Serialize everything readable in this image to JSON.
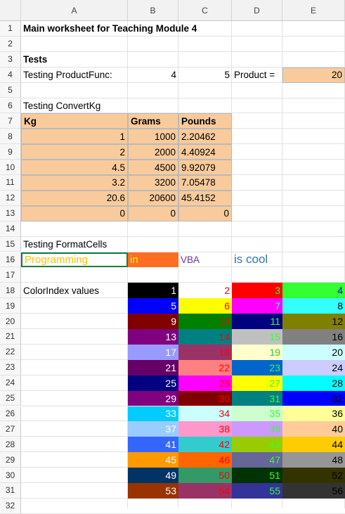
{
  "columns": [
    "A",
    "B",
    "C",
    "D",
    "E"
  ],
  "rows": [
    "1",
    "2",
    "3",
    "4",
    "5",
    "6",
    "7",
    "8",
    "9",
    "10",
    "11",
    "12",
    "13",
    "14",
    "15",
    "16",
    "17",
    "18",
    "19",
    "20",
    "21",
    "22",
    "23",
    "24",
    "25",
    "26",
    "27",
    "28",
    "29",
    "30",
    "31",
    "32"
  ],
  "cells": {
    "a1": "Main worksheet for Teaching Module 4",
    "a3": "Tests",
    "a4": "Testing ProductFunc:",
    "b4": "4",
    "c4": "5",
    "d4": "Product =",
    "e4": "20",
    "a6": "Testing ConvertKg",
    "a7": "Kg",
    "b7": "Grams",
    "c7": "Pounds",
    "a15": "Testing FormatCells",
    "a16": "Programming",
    "b16": "in",
    "c16": "VBA",
    "d16": "is cool",
    "a18": "ColorIndex values"
  },
  "convert_rows": [
    {
      "kg": "1",
      "grams": "1000",
      "pounds": "2.20462"
    },
    {
      "kg": "2",
      "grams": "2000",
      "pounds": "4.40924"
    },
    {
      "kg": "4.5",
      "grams": "4500",
      "pounds": "9.92079"
    },
    {
      "kg": "3.2",
      "grams": "3200",
      "pounds": "7.05478"
    },
    {
      "kg": "20.6",
      "grams": "20600",
      "pounds": "45.4152"
    },
    {
      "kg": "0",
      "grams": "0",
      "pounds": "0"
    }
  ],
  "colorindex": [
    [
      {
        "v": "1",
        "bg": "#000000",
        "fg": "#ffffff"
      },
      {
        "v": "2",
        "bg": "#ffffff",
        "fg": "#ff0000"
      },
      {
        "v": "3",
        "bg": "#ff0000",
        "fg": "#33ff33"
      },
      {
        "v": "4",
        "bg": "#33ff33",
        "fg": "#0000ff"
      }
    ],
    [
      {
        "v": "5",
        "bg": "#0000ff",
        "fg": "#ffffff"
      },
      {
        "v": "6",
        "bg": "#ffff00",
        "fg": "#ff0000"
      },
      {
        "v": "7",
        "bg": "#ff00ff",
        "fg": "#33ffff"
      },
      {
        "v": "8",
        "bg": "#33ffff",
        "fg": "#000000"
      }
    ],
    [
      {
        "v": "9",
        "bg": "#800000",
        "fg": "#ffffff"
      },
      {
        "v": "10",
        "bg": "#008000",
        "fg": "#ff0000"
      },
      {
        "v": "11",
        "bg": "#000080",
        "fg": "#33ff33"
      },
      {
        "v": "12",
        "bg": "#808000",
        "fg": "#000000"
      }
    ],
    [
      {
        "v": "13",
        "bg": "#800080",
        "fg": "#ffffff"
      },
      {
        "v": "14",
        "bg": "#008080",
        "fg": "#ff0000"
      },
      {
        "v": "15",
        "bg": "#c0c0c0",
        "fg": "#33ff33"
      },
      {
        "v": "16",
        "bg": "#808080",
        "fg": "#000000"
      }
    ],
    [
      {
        "v": "17",
        "bg": "#9999ff",
        "fg": "#ffffff"
      },
      {
        "v": "18",
        "bg": "#993366",
        "fg": "#ff0000"
      },
      {
        "v": "19",
        "bg": "#ffffcc",
        "fg": "#33cc33"
      },
      {
        "v": "20",
        "bg": "#ccffff",
        "fg": "#000000"
      }
    ],
    [
      {
        "v": "21",
        "bg": "#660066",
        "fg": "#ffffff"
      },
      {
        "v": "22",
        "bg": "#ff8080",
        "fg": "#ff0000"
      },
      {
        "v": "23",
        "bg": "#0066cc",
        "fg": "#33ff33"
      },
      {
        "v": "24",
        "bg": "#ccccff",
        "fg": "#000000"
      }
    ],
    [
      {
        "v": "25",
        "bg": "#000080",
        "fg": "#ffffff"
      },
      {
        "v": "26",
        "bg": "#ff00ff",
        "fg": "#ff0000"
      },
      {
        "v": "27",
        "bg": "#ffff00",
        "fg": "#33ff33"
      },
      {
        "v": "28",
        "bg": "#00ffff",
        "fg": "#000000"
      }
    ],
    [
      {
        "v": "29",
        "bg": "#800080",
        "fg": "#ffffff"
      },
      {
        "v": "30",
        "bg": "#800000",
        "fg": "#ff0000"
      },
      {
        "v": "31",
        "bg": "#008080",
        "fg": "#33ff33"
      },
      {
        "v": "32",
        "bg": "#0000ff",
        "fg": "#000000"
      }
    ],
    [
      {
        "v": "33",
        "bg": "#00ccff",
        "fg": "#ffffff"
      },
      {
        "v": "34",
        "bg": "#ccffff",
        "fg": "#ff0000"
      },
      {
        "v": "35",
        "bg": "#ccffcc",
        "fg": "#33ff33"
      },
      {
        "v": "36",
        "bg": "#ffff99",
        "fg": "#000000"
      }
    ],
    [
      {
        "v": "37",
        "bg": "#99ccff",
        "fg": "#ffffff"
      },
      {
        "v": "38",
        "bg": "#ff99cc",
        "fg": "#ff0000"
      },
      {
        "v": "39",
        "bg": "#cc99ff",
        "fg": "#33ff33"
      },
      {
        "v": "40",
        "bg": "#ffcc99",
        "fg": "#000000"
      }
    ],
    [
      {
        "v": "41",
        "bg": "#3366ff",
        "fg": "#ffffff"
      },
      {
        "v": "42",
        "bg": "#33cccc",
        "fg": "#ff0000"
      },
      {
        "v": "43",
        "bg": "#99cc00",
        "fg": "#33ff33"
      },
      {
        "v": "44",
        "bg": "#ffcc00",
        "fg": "#000000"
      }
    ],
    [
      {
        "v": "45",
        "bg": "#ff9900",
        "fg": "#ffffff"
      },
      {
        "v": "46",
        "bg": "#ff6600",
        "fg": "#ff0000"
      },
      {
        "v": "47",
        "bg": "#666699",
        "fg": "#33ff33"
      },
      {
        "v": "48",
        "bg": "#969696",
        "fg": "#000000"
      }
    ],
    [
      {
        "v": "49",
        "bg": "#003366",
        "fg": "#ffffff"
      },
      {
        "v": "50",
        "bg": "#339966",
        "fg": "#ff0000"
      },
      {
        "v": "51",
        "bg": "#003300",
        "fg": "#33ff33"
      },
      {
        "v": "52",
        "bg": "#333300",
        "fg": "#000000"
      }
    ],
    [
      {
        "v": "53",
        "bg": "#993300",
        "fg": "#ffffff"
      },
      {
        "v": "54",
        "bg": "#993366",
        "fg": "#ff0000"
      },
      {
        "v": "55",
        "bg": "#333399",
        "fg": "#33ff33"
      },
      {
        "v": "56",
        "bg": "#333333",
        "fg": "#000000"
      }
    ]
  ],
  "colors": {
    "a16_text": "#ffc000",
    "b16_fill": "#ff6d22",
    "b16_text": "#ffff00",
    "c16_text": "#7030a0",
    "d16_text": "#2e75b6",
    "orange_fill": "#f9cb9c"
  }
}
